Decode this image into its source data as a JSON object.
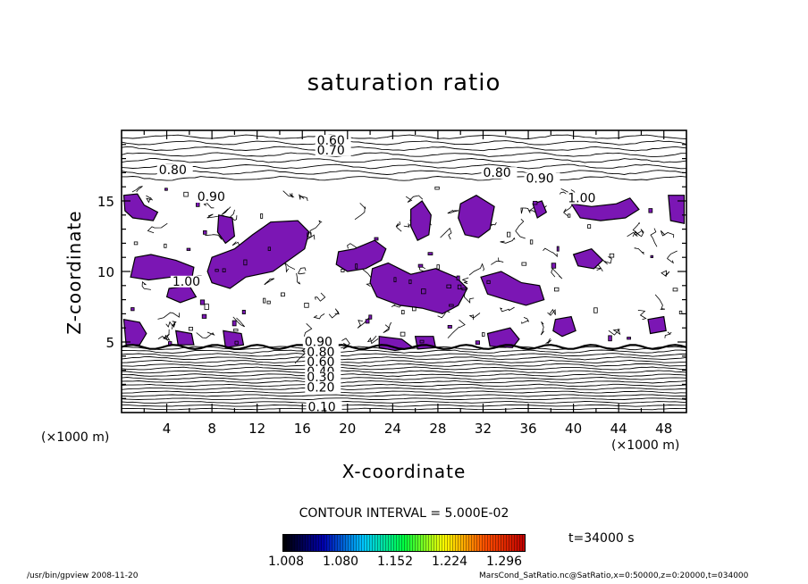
{
  "chart_data": {
    "type": "heatmap",
    "title": "saturation ratio",
    "xlabel": "X-coordinate",
    "ylabel": "Z-coordinate",
    "x_unit_label": "(×1000 m)",
    "xlim": [
      0,
      50
    ],
    "ylim": [
      0,
      20
    ],
    "x_ticks": [
      4,
      8,
      12,
      16,
      20,
      24,
      28,
      32,
      36,
      40,
      44,
      48
    ],
    "y_ticks": [
      5,
      10,
      15
    ],
    "contour_interval_text": "CONTOUR INTERVAL = 5.000E-02",
    "contour_labels": [
      {
        "text": "0.60",
        "x": 17.3,
        "z": 19.0
      },
      {
        "text": "0.70",
        "x": 17.3,
        "z": 18.3
      },
      {
        "text": "0.80",
        "x": 3.3,
        "z": 16.9
      },
      {
        "text": "0.80",
        "x": 32.0,
        "z": 16.7
      },
      {
        "text": "0.90",
        "x": 35.8,
        "z": 16.3
      },
      {
        "text": "0.90",
        "x": 6.7,
        "z": 15.0
      },
      {
        "text": "1.00",
        "x": 39.5,
        "z": 14.9
      },
      {
        "text": "1.00",
        "x": 4.5,
        "z": 9.0
      },
      {
        "text": "0.90",
        "x": 16.2,
        "z": 4.7
      },
      {
        "text": "0.80",
        "x": 16.4,
        "z": 4.0
      },
      {
        "text": "0.60",
        "x": 16.4,
        "z": 3.3
      },
      {
        "text": "0.40",
        "x": 16.4,
        "z": 2.6
      },
      {
        "text": "0.30",
        "x": 16.4,
        "z": 2.2
      },
      {
        "text": "0.20",
        "x": 16.4,
        "z": 1.5
      },
      {
        "text": "0.10",
        "x": 16.5,
        "z": 0.1
      }
    ],
    "supersaturated_regions": [
      [
        [
          0.2,
          15.4
        ],
        [
          1.4,
          15.5
        ],
        [
          2.0,
          14.7
        ],
        [
          3.2,
          14.2
        ],
        [
          2.8,
          13.6
        ],
        [
          1.0,
          13.8
        ],
        [
          0.3,
          14.3
        ]
      ],
      [
        [
          8.6,
          14.0
        ],
        [
          9.8,
          13.8
        ],
        [
          10.0,
          12.5
        ],
        [
          9.2,
          12.0
        ],
        [
          8.5,
          12.8
        ]
      ],
      [
        [
          1.2,
          11.0
        ],
        [
          2.6,
          11.2
        ],
        [
          4.8,
          10.8
        ],
        [
          6.4,
          10.3
        ],
        [
          6.2,
          9.4
        ],
        [
          4.4,
          9.6
        ],
        [
          2.4,
          9.4
        ],
        [
          0.8,
          9.6
        ]
      ],
      [
        [
          8.0,
          11.0
        ],
        [
          10.0,
          11.6
        ],
        [
          11.6,
          12.6
        ],
        [
          13.2,
          13.5
        ],
        [
          15.6,
          13.6
        ],
        [
          16.6,
          12.8
        ],
        [
          16.2,
          11.6
        ],
        [
          14.8,
          10.8
        ],
        [
          13.4,
          10.0
        ],
        [
          11.0,
          9.6
        ],
        [
          9.6,
          8.8
        ],
        [
          8.0,
          9.2
        ],
        [
          7.6,
          10.0
        ]
      ],
      [
        [
          19.2,
          11.4
        ],
        [
          20.6,
          11.6
        ],
        [
          22.4,
          12.2
        ],
        [
          23.4,
          11.6
        ],
        [
          23.0,
          10.8
        ],
        [
          21.6,
          10.2
        ],
        [
          20.0,
          10.0
        ],
        [
          19.0,
          10.5
        ]
      ],
      [
        [
          22.2,
          10.2
        ],
        [
          23.6,
          10.6
        ],
        [
          25.6,
          9.8
        ],
        [
          27.8,
          10.2
        ],
        [
          29.6,
          9.6
        ],
        [
          30.6,
          8.8
        ],
        [
          29.8,
          7.6
        ],
        [
          28.4,
          7.0
        ],
        [
          26.6,
          7.4
        ],
        [
          24.6,
          7.6
        ],
        [
          22.6,
          8.2
        ],
        [
          22.0,
          9.2
        ]
      ],
      [
        [
          25.6,
          14.4
        ],
        [
          26.6,
          15.0
        ],
        [
          27.4,
          14.0
        ],
        [
          27.2,
          12.6
        ],
        [
          26.2,
          12.2
        ],
        [
          25.6,
          13.2
        ]
      ],
      [
        [
          30.0,
          14.8
        ],
        [
          31.4,
          15.4
        ],
        [
          33.0,
          14.6
        ],
        [
          32.6,
          13.0
        ],
        [
          31.6,
          12.4
        ],
        [
          30.4,
          12.6
        ],
        [
          29.8,
          13.8
        ]
      ],
      [
        [
          31.8,
          9.6
        ],
        [
          33.6,
          10.0
        ],
        [
          35.4,
          9.2
        ],
        [
          37.0,
          9.0
        ],
        [
          37.4,
          8.0
        ],
        [
          35.8,
          7.6
        ],
        [
          34.0,
          8.0
        ],
        [
          32.4,
          8.4
        ]
      ],
      [
        [
          36.4,
          14.8
        ],
        [
          37.2,
          15.0
        ],
        [
          37.6,
          14.2
        ],
        [
          36.8,
          13.8
        ]
      ],
      [
        [
          39.8,
          14.8
        ],
        [
          41.6,
          14.6
        ],
        [
          43.8,
          14.8
        ],
        [
          45.0,
          15.2
        ],
        [
          45.8,
          14.4
        ],
        [
          44.6,
          13.8
        ],
        [
          42.4,
          13.6
        ],
        [
          40.6,
          13.8
        ]
      ],
      [
        [
          48.4,
          15.4
        ],
        [
          49.8,
          15.4
        ],
        [
          49.8,
          13.4
        ],
        [
          48.6,
          13.6
        ]
      ],
      [
        [
          40.0,
          11.2
        ],
        [
          41.6,
          11.6
        ],
        [
          42.6,
          10.8
        ],
        [
          41.8,
          10.2
        ],
        [
          40.4,
          10.4
        ]
      ],
      [
        [
          0.2,
          6.6
        ],
        [
          1.6,
          6.4
        ],
        [
          2.2,
          5.6
        ],
        [
          1.6,
          4.8
        ],
        [
          0.4,
          4.8
        ]
      ],
      [
        [
          4.8,
          5.8
        ],
        [
          6.2,
          5.6
        ],
        [
          6.4,
          4.8
        ],
        [
          5.0,
          4.8
        ]
      ],
      [
        [
          9.0,
          5.8
        ],
        [
          10.6,
          5.6
        ],
        [
          10.8,
          4.8
        ],
        [
          9.2,
          4.6
        ]
      ],
      [
        [
          22.8,
          5.4
        ],
        [
          24.8,
          5.2
        ],
        [
          25.8,
          4.6
        ],
        [
          24.2,
          4.4
        ],
        [
          22.8,
          4.6
        ]
      ],
      [
        [
          26.0,
          5.4
        ],
        [
          27.6,
          5.4
        ],
        [
          27.8,
          4.6
        ],
        [
          26.2,
          4.5
        ]
      ],
      [
        [
          32.4,
          5.6
        ],
        [
          34.4,
          6.0
        ],
        [
          35.2,
          5.2
        ],
        [
          34.6,
          4.6
        ],
        [
          32.6,
          4.7
        ]
      ],
      [
        [
          38.4,
          6.6
        ],
        [
          39.8,
          6.8
        ],
        [
          40.2,
          5.8
        ],
        [
          39.0,
          5.4
        ],
        [
          38.2,
          5.8
        ]
      ],
      [
        [
          46.6,
          6.6
        ],
        [
          48.0,
          6.8
        ],
        [
          48.2,
          5.8
        ],
        [
          46.8,
          5.6
        ]
      ],
      [
        [
          4.2,
          8.8
        ],
        [
          6.0,
          9.0
        ],
        [
          6.6,
          8.2
        ],
        [
          5.2,
          7.8
        ],
        [
          4.0,
          8.2
        ]
      ]
    ],
    "colorbar": {
      "tick_labels": [
        "1.008",
        "1.080",
        "1.152",
        "1.224",
        "1.296"
      ],
      "min": 1.0,
      "max": 1.32,
      "colors": [
        "#000000",
        "#0000b0",
        "#00c8ff",
        "#00ff40",
        "#ffff00",
        "#ff5000",
        "#c00000"
      ],
      "region_color": "#7b16b4"
    }
  },
  "time_label": "t=34000 s",
  "footer_left": "/usr/bin/gpview   2008-11-20",
  "footer_right": "MarsCond_SatRatio.nc@SatRatio,x=0:50000,z=0:20000,t=034000"
}
